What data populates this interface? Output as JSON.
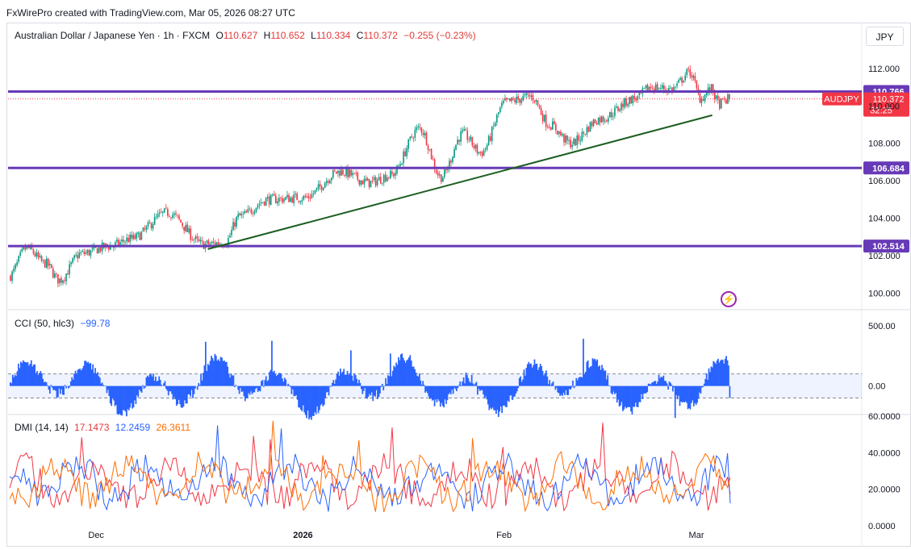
{
  "header": {
    "attribution": "FxWirePro created with TradingView.com, Mar 05, 2026 08:27 UTC",
    "currency_button": "JPY"
  },
  "price_legend": {
    "symbol": "Australian Dollar / Japanese Yen · 1h · FXCM",
    "open_label": "O",
    "open": "110.627",
    "high_label": "H",
    "high": "110.652",
    "low_label": "L",
    "low": "110.334",
    "close_label": "C",
    "close": "110.372",
    "change": "−0.255 (−0.23%)"
  },
  "cci_legend": {
    "name": "CCI (50, hlc3)",
    "value": "−99.78"
  },
  "dmi_legend": {
    "name": "DMI (14, 14)",
    "v1": "17.1473",
    "v2": "12.2459",
    "v3": "26.3611"
  },
  "colors": {
    "candle_up": "#089981",
    "candle_down": "#f23645",
    "level_line": "#673ab7",
    "trendline": "#1b5e20",
    "cci": "#2962ff",
    "dmi_plus": "#2962ff",
    "dmi_minus": "#f23645",
    "adx": "#ff6d00",
    "price_tag": "#f23645"
  },
  "chart_data": [
    {
      "type": "candlestick",
      "title": "Australian Dollar / Japanese Yen · 1h · FXCM",
      "unit": "JPY",
      "ylim": [
        99.2,
        113.2
      ],
      "y_ticks": [
        "100.000",
        "102.000",
        "104.000",
        "106.000",
        "108.000",
        "110.000",
        "112.000"
      ],
      "x_ticks": [
        "Dec",
        "2026",
        "Feb",
        "Mar"
      ],
      "path_waypoints": [
        [
          0.0,
          100.9
        ],
        [
          0.025,
          102.4
        ],
        [
          0.05,
          101.6
        ],
        [
          0.07,
          100.7
        ],
        [
          0.1,
          102.1
        ],
        [
          0.14,
          102.5
        ],
        [
          0.17,
          102.9
        ],
        [
          0.22,
          104.3
        ],
        [
          0.27,
          102.6
        ],
        [
          0.3,
          102.7
        ],
        [
          0.32,
          104.1
        ],
        [
          0.36,
          105.0
        ],
        [
          0.41,
          105.1
        ],
        [
          0.46,
          106.5
        ],
        [
          0.5,
          105.9
        ],
        [
          0.53,
          106.3
        ],
        [
          0.57,
          108.8
        ],
        [
          0.6,
          106.2
        ],
        [
          0.63,
          108.5
        ],
        [
          0.655,
          107.5
        ],
        [
          0.69,
          110.2
        ],
        [
          0.725,
          110.5
        ],
        [
          0.75,
          109.0
        ],
        [
          0.78,
          108.0
        ],
        [
          0.82,
          109.3
        ],
        [
          0.87,
          110.4
        ],
        [
          0.89,
          111.0
        ],
        [
          0.92,
          110.9
        ],
        [
          0.945,
          111.8
        ],
        [
          0.96,
          110.4
        ],
        [
          0.975,
          110.9
        ],
        [
          0.985,
          110.1
        ],
        [
          1.0,
          110.372
        ]
      ],
      "levels": [
        {
          "label": "110.766",
          "value": 110.766
        },
        {
          "label": "106.684",
          "value": 106.684
        },
        {
          "label": "102.514",
          "value": 102.514
        }
      ],
      "current_price": {
        "symbol": "AUDJPY",
        "price": "110.372",
        "countdown": "32:25",
        "value": 110.372
      },
      "trendline": [
        [
          0.275,
          102.35
        ],
        [
          0.975,
          109.5
        ]
      ],
      "markers": [
        "lightning-icon"
      ]
    },
    {
      "type": "histogram",
      "title": "CCI (50, hlc3)",
      "ylim": [
        -230,
        620
      ],
      "y_ticks": [
        "500.00",
        "0.00"
      ],
      "band": [
        -100,
        100
      ],
      "last_value": -99.78
    },
    {
      "type": "line",
      "title": "DMI (14, 14)",
      "ylim": [
        0,
        60
      ],
      "y_ticks": [
        "60.0000",
        "40.0000",
        "20.0000",
        "0.0000"
      ],
      "series": [
        {
          "name": "17.1473",
          "last": 17.1473
        },
        {
          "name": "12.2459",
          "last": 12.2459
        },
        {
          "name": "26.3611",
          "last": 26.3611
        }
      ]
    }
  ]
}
